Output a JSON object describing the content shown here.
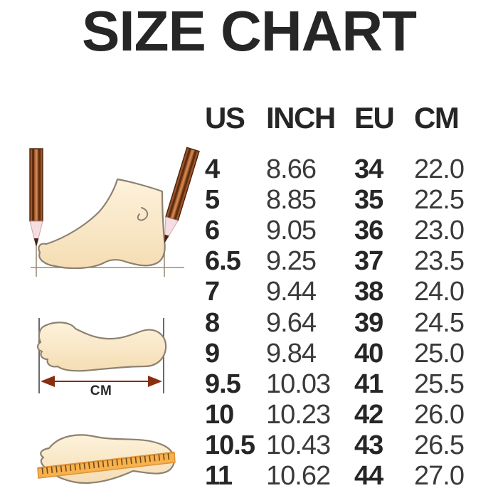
{
  "title": "SIZE CHART",
  "chart_data": {
    "type": "table",
    "title": "SIZE CHART",
    "columns": [
      "US",
      "INCH",
      "EU",
      "CM"
    ],
    "rows": [
      [
        "4",
        "8.66",
        "34",
        "22.0"
      ],
      [
        "5",
        "8.85",
        "35",
        "22.5"
      ],
      [
        "6",
        "9.05",
        "36",
        "23.0"
      ],
      [
        "6.5",
        "9.25",
        "37",
        "23.5"
      ],
      [
        "7",
        "9.44",
        "38",
        "24.0"
      ],
      [
        "8",
        "9.64",
        "39",
        "24.5"
      ],
      [
        "9",
        "9.84",
        "40",
        "25.0"
      ],
      [
        "9.5",
        "10.03",
        "41",
        "25.5"
      ],
      [
        "10",
        "10.23",
        "42",
        "26.0"
      ],
      [
        "10.5",
        "10.43",
        "43",
        "26.5"
      ],
      [
        "11",
        "10.62",
        "44",
        "27.0"
      ]
    ]
  },
  "illustrations": {
    "cm_label": "CM",
    "items": [
      {
        "name": "foot-side-measured-by-pencils"
      },
      {
        "name": "footprint-length-arrow"
      },
      {
        "name": "footprint-with-ruler"
      }
    ]
  },
  "colors": {
    "background": "#ffffff",
    "text_dark": "#262626",
    "text_value": "#3a3a3a",
    "skin_light": "#fdf2dc",
    "skin_shadow": "#f5ddb4",
    "outline_brown": "#8d8170",
    "pencil_body": "#a0542a",
    "pencil_stripe": "#5e2d0f",
    "pencil_highlight": "#c8854e",
    "pencil_tip_wood": "#f5dde2",
    "pencil_lead": "#45220c",
    "guide_line": "#9b8c7a",
    "arrow": "#8a2e12",
    "ruler_fill": "#f7b14d",
    "ruler_edge": "#dd9338",
    "ruler_tick": "#6b4a17"
  }
}
